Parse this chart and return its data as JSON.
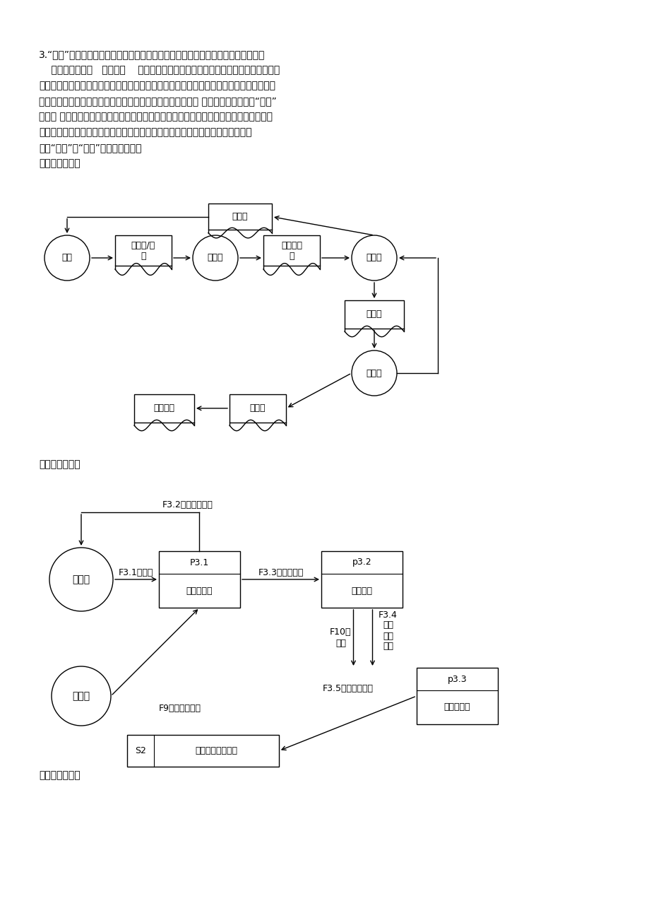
{
  "bg_color": "#ffffff",
  "para_lines": [
    "3.“进书”主要指新书的验收、分类编号、填写、审核、入库。主要过程：书商将选购",
    "    单和新书送选购   员；选购    员验收，假如不合格就退回，合格就送编目员；编目员",
    "依据国家标准进行的分类编号，填写包括书名，书号，作者、出版社等基本信息的入库单；",
    "库管员验收入库单和新书，假如合格就入库，并更新入库台帐 假如不合格就退回。“售书”",
    "的流程 顾客选定书籍后，收銀员进行收费和开收费单，并更新销售台帐。顾客凭收费单可",
    "以将图书带离书店，书店保安审核合格后，放行，否则将让顾客到收銀员处缴费。",
    "画出“进书”和“售书”的数据流程图。",
    "进书业务流程："
  ],
  "label_dfd": "进书数据流程：",
  "label_sell": "售书业务流程："
}
